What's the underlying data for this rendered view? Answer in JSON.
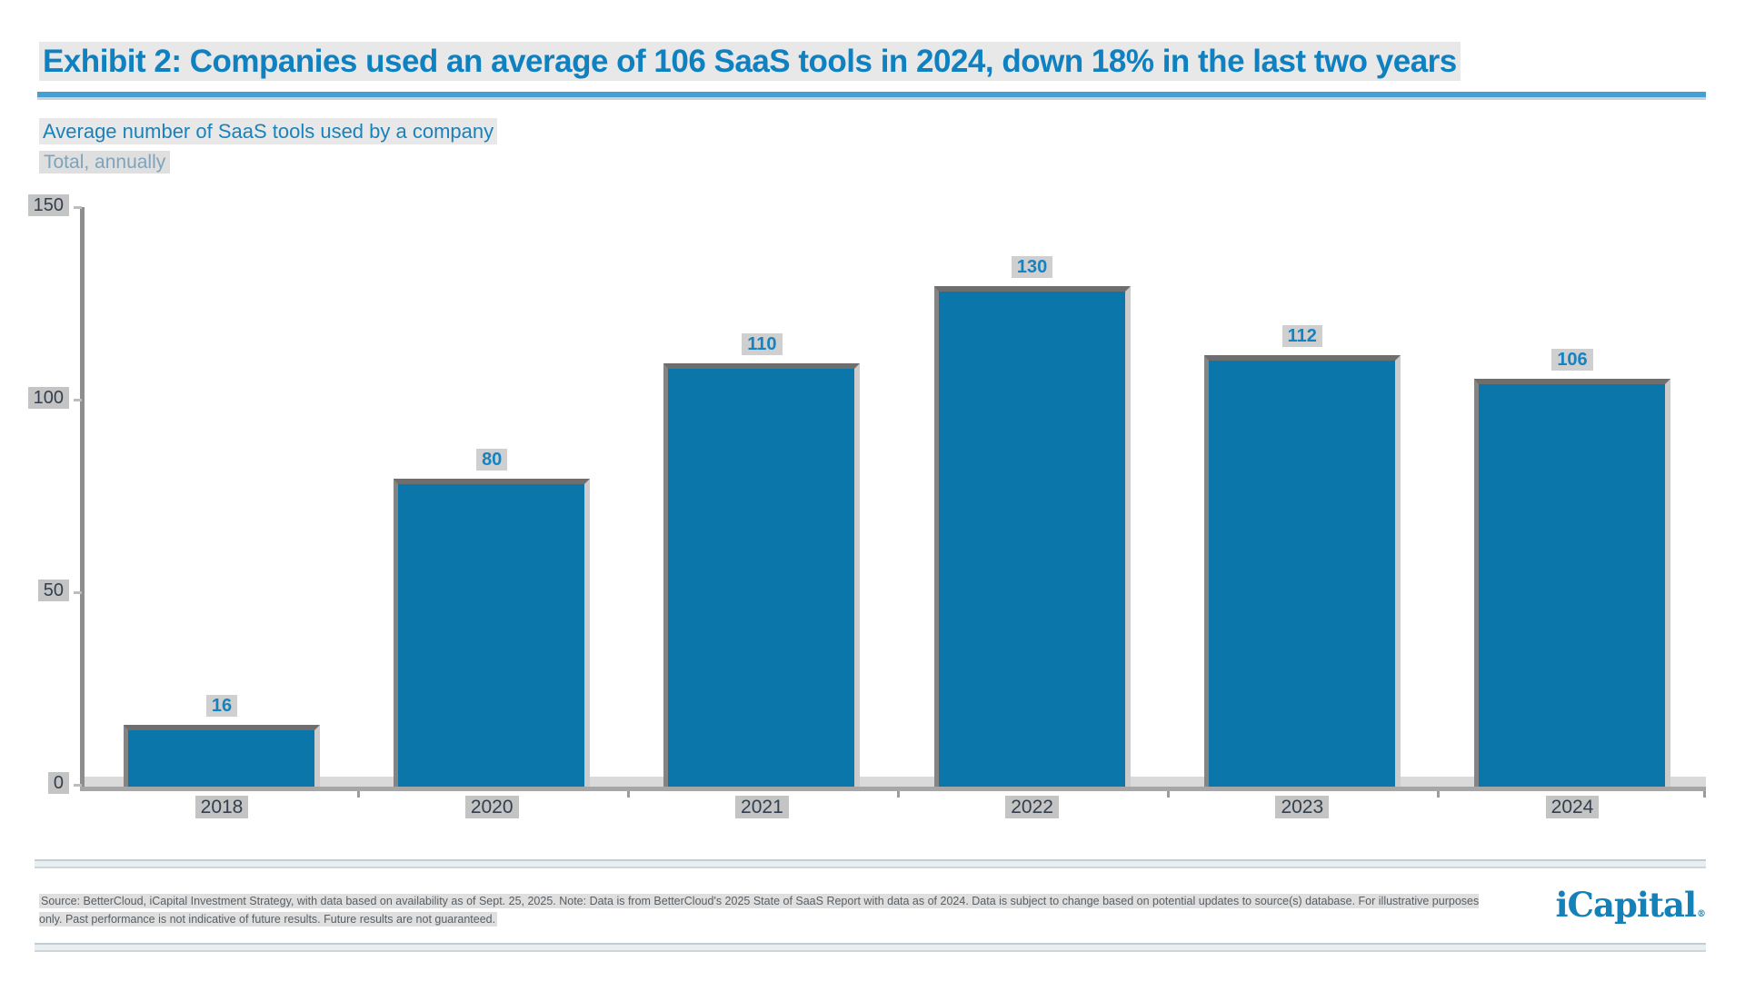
{
  "header": {
    "title": "Exhibit 2: Companies used an average of 106 SaaS tools in 2024, down 18% in the last two years",
    "subtitle": "Average number of SaaS tools used by a company",
    "kicker": "Total, annually"
  },
  "chart_data": {
    "type": "bar",
    "title": "Average number of SaaS tools used by a company",
    "subtitle": "Total, annually",
    "categories": [
      "2018",
      "2020",
      "2021",
      "2022",
      "2023",
      "2024"
    ],
    "values": [
      16,
      80,
      110,
      130,
      112,
      106
    ],
    "data_labels": [
      16,
      80,
      110,
      130,
      112,
      106
    ],
    "xlabel": "",
    "ylabel": "",
    "ylim": [
      0,
      150
    ],
    "yticks": [
      0,
      50,
      100,
      150
    ],
    "grid": false,
    "legend_position": "none",
    "bar_color": "#0b76a9"
  },
  "footer": {
    "source": "Source: BetterCloud, iCapital Investment Strategy, with data based on availability as of Sept. 25, 2025. Note: Data is from BetterCloud's 2025 State of SaaS Report with data as of 2024. Data is subject to change based on potential updates to source(s) database. For illustrative purposes only. Past performance is not indicative of future results. Future results are not guaranteed.",
    "logo_text": "iCapital",
    "logo_mark": "®"
  },
  "colors": {
    "title_blue": "#0f81c0",
    "rule_blue": "#449fd3",
    "subtitle_blue": "#1a82bb",
    "kicker_gray_blue": "#7fa3ba",
    "bar_blue": "#0b76a9",
    "data_label_blue": "#1583c2",
    "axis_label_dark": "#333f4e",
    "axis_gray": "#8e8e8e",
    "source_gray": "#565f66",
    "logo_blue": "#1482b8"
  }
}
